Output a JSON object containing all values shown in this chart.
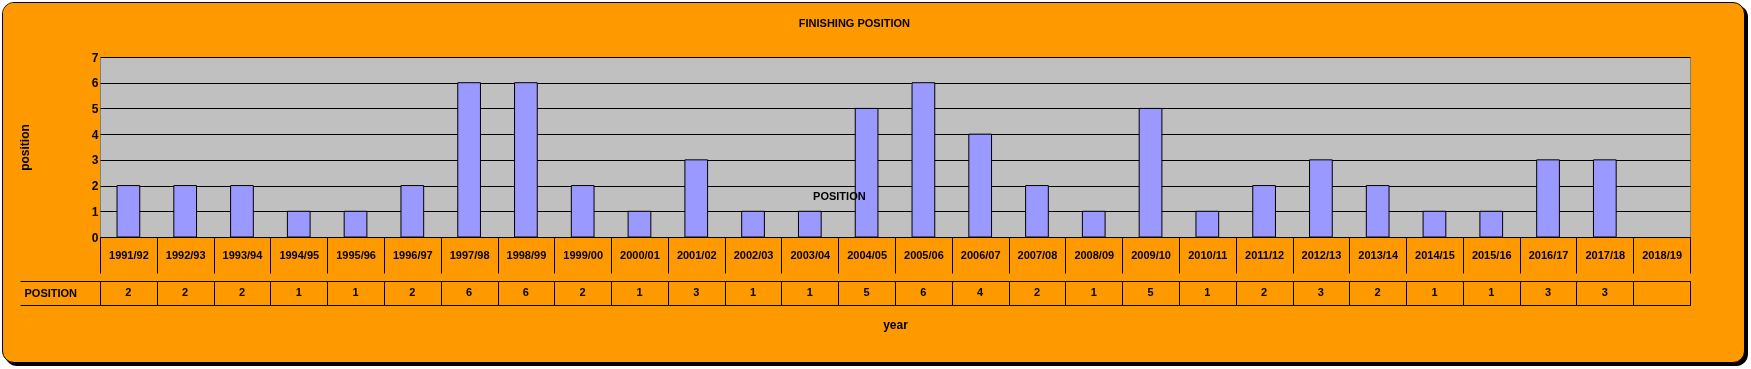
{
  "chart_data": {
    "type": "bar",
    "title": "FINISHING POSITION",
    "xlabel": "year",
    "ylabel": "position",
    "categories": [
      "1991/92",
      "1992/93",
      "1993/94",
      "1994/95",
      "1995/96",
      "1996/97",
      "1997/98",
      "1998/99",
      "1999/00",
      "2000/01",
      "2001/02",
      "2002/03",
      "2003/04",
      "2004/05",
      "2005/06",
      "2006/07",
      "2007/08",
      "2008/09",
      "2009/10",
      "2010/11",
      "2011/12",
      "2012/13",
      "2013/14",
      "2014/15",
      "2015/16",
      "2016/17",
      "2017/18",
      "2018/19"
    ],
    "series": [
      {
        "name": "POSITION",
        "color": "#9999ff",
        "values": [
          2,
          2,
          2,
          1,
          1,
          2,
          6,
          6,
          2,
          1,
          3,
          1,
          1,
          5,
          6,
          4,
          2,
          1,
          5,
          1,
          2,
          3,
          2,
          1,
          1,
          3,
          3,
          null
        ]
      }
    ],
    "ylim": [
      0,
      7
    ],
    "yticks": [
      0,
      1,
      2,
      3,
      4,
      5,
      6,
      7
    ],
    "grid": "y",
    "data_labels": true,
    "annotations": [
      "POSITION"
    ]
  }
}
